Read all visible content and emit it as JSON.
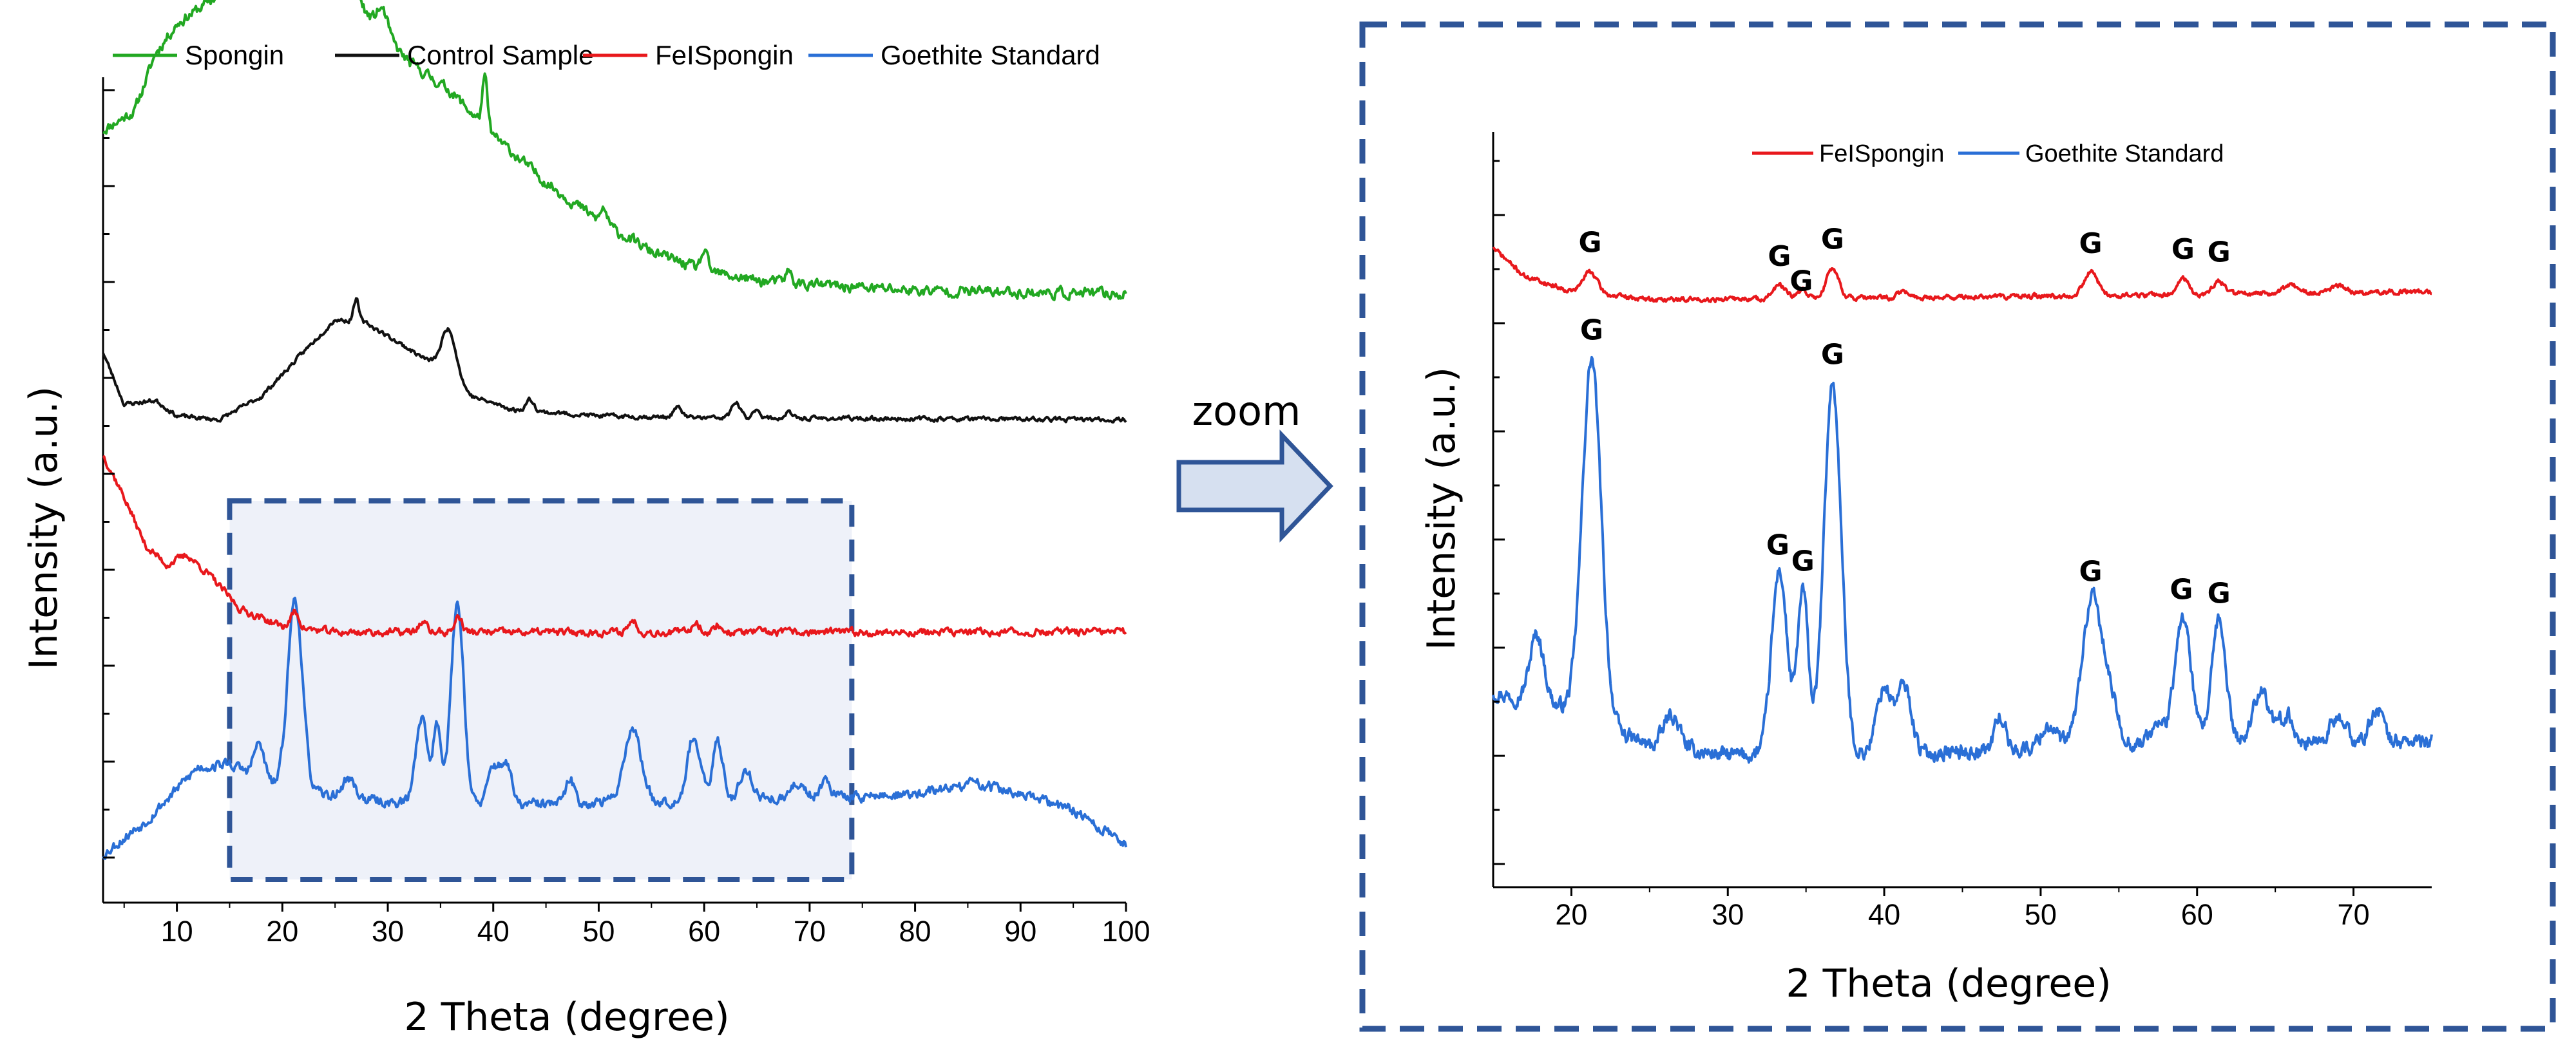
{
  "colors": {
    "spongin": "#22a822",
    "control": "#111111",
    "fespongin": "#e8181c",
    "goethite": "#2a6fd6",
    "frame": "#2f5597",
    "arrow_fill": "#d6e0f0",
    "highlight_fill": "#eef1f9"
  },
  "annotation": {
    "zoom_label": "zoom"
  },
  "chart_data": [
    {
      "type": "line",
      "panel": "full-range",
      "title": "",
      "xlabel": "2 Theta (degree)",
      "ylabel": "Intensity (a.u.)",
      "xlim": [
        3,
        100
      ],
      "x_ticks": [
        10,
        20,
        30,
        40,
        50,
        60,
        70,
        80,
        90,
        100
      ],
      "y_ticks_labeled": false,
      "legend_position": "top",
      "highlight_region": [
        15,
        74
      ],
      "series": [
        {
          "name": "Spongin",
          "color_key": "spongin",
          "offset": 2.95,
          "baseline": [
            [
              3,
              0.85
            ],
            [
              6,
              0.95
            ],
            [
              8,
              1.25
            ],
            [
              10,
              1.4
            ],
            [
              14,
              1.55
            ],
            [
              17,
              1.85
            ],
            [
              19,
              2.4
            ],
            [
              21,
              2.55
            ],
            [
              23,
              2.25
            ],
            [
              25,
              1.75
            ],
            [
              28,
              1.45
            ],
            [
              32,
              1.2
            ],
            [
              36,
              1.05
            ],
            [
              40,
              0.82
            ],
            [
              45,
              0.58
            ],
            [
              50,
              0.38
            ],
            [
              55,
              0.22
            ],
            [
              60,
              0.12
            ],
            [
              65,
              0.07
            ],
            [
              70,
              0.05
            ],
            [
              80,
              0.02
            ],
            [
              100,
              0.0
            ]
          ],
          "peaks": [
            [
              26.7,
              0.3,
              0.3
            ],
            [
              39.2,
              0.25,
              0.25
            ],
            [
              29.5,
              0.12,
              0.5
            ],
            [
              50.5,
              0.08,
              0.3
            ],
            [
              60,
              0.1,
              0.3
            ],
            [
              68,
              0.06,
              0.3
            ]
          ],
          "noise": 0.05
        },
        {
          "name": "Control Sample",
          "color_key": "control",
          "offset": 2.3,
          "baseline": [
            [
              3,
              0.35
            ],
            [
              5,
              0.08
            ],
            [
              8,
              0.1
            ],
            [
              10,
              0.02
            ],
            [
              14,
              0.0
            ],
            [
              18,
              0.12
            ],
            [
              22,
              0.35
            ],
            [
              25,
              0.52
            ],
            [
              28,
              0.5
            ],
            [
              31,
              0.4
            ],
            [
              34,
              0.3
            ],
            [
              38,
              0.12
            ],
            [
              42,
              0.05
            ],
            [
              50,
              0.02
            ],
            [
              60,
              0.01
            ],
            [
              100,
              0.0
            ]
          ],
          "peaks": [
            [
              27.0,
              0.12,
              0.25
            ],
            [
              35.8,
              0.25,
              0.7
            ],
            [
              43.5,
              0.06,
              0.4
            ],
            [
              57.5,
              0.05,
              0.4
            ],
            [
              63,
              0.08,
              0.4
            ],
            [
              65,
              0.05,
              0.3
            ],
            [
              68,
              0.03,
              0.3
            ]
          ],
          "noise": 0.02
        },
        {
          "name": "FeISpongin",
          "color_key": "fespongin",
          "offset": 1.2,
          "baseline": [
            [
              3,
              0.92
            ],
            [
              5,
              0.7
            ],
            [
              7,
              0.45
            ],
            [
              9,
              0.35
            ],
            [
              11,
              0.4
            ],
            [
              13,
              0.3
            ],
            [
              16,
              0.12
            ],
            [
              20,
              0.03
            ],
            [
              25,
              0.0
            ],
            [
              40,
              0.0
            ],
            [
              60,
              0.0
            ],
            [
              100,
              0.0
            ]
          ],
          "peaks": [
            [
              21.2,
              0.08,
              0.4
            ],
            [
              33.3,
              0.05,
              0.4
            ],
            [
              36.7,
              0.08,
              0.35
            ],
            [
              53.2,
              0.06,
              0.4
            ],
            [
              59.2,
              0.05,
              0.4
            ],
            [
              61.3,
              0.04,
              0.3
            ]
          ],
          "noise": 0.035
        },
        {
          "name": "Goethite Standard",
          "color_key": "goethite",
          "offset": 0.0,
          "baseline": [
            [
              3,
              0.05
            ],
            [
              7,
              0.22
            ],
            [
              12,
              0.5
            ],
            [
              15,
              0.52
            ],
            [
              20,
              0.38
            ],
            [
              30,
              0.32
            ],
            [
              40,
              0.3
            ],
            [
              50,
              0.32
            ],
            [
              60,
              0.33
            ],
            [
              70,
              0.34
            ],
            [
              80,
              0.36
            ],
            [
              86,
              0.42
            ],
            [
              95,
              0.28
            ],
            [
              100,
              0.1
            ]
          ],
          "peaks": [
            [
              17.8,
              0.18,
              0.5
            ],
            [
              21.2,
              1.0,
              0.7
            ],
            [
              26.3,
              0.1,
              0.6
            ],
            [
              33.2,
              0.45,
              0.55
            ],
            [
              34.7,
              0.4,
              0.4
            ],
            [
              36.6,
              1.05,
              0.6
            ],
            [
              40.0,
              0.2,
              0.5
            ],
            [
              41.2,
              0.22,
              0.5
            ],
            [
              47.3,
              0.12,
              0.4
            ],
            [
              53.2,
              0.38,
              0.8
            ],
            [
              59.0,
              0.33,
              0.6
            ],
            [
              61.3,
              0.3,
              0.5
            ],
            [
              64.0,
              0.15,
              0.6
            ],
            [
              69,
              0.08,
              0.6
            ],
            [
              71.5,
              0.1,
              0.5
            ]
          ],
          "noise": 0.05
        }
      ]
    },
    {
      "type": "line",
      "panel": "zoom",
      "title": "",
      "xlabel": "2 Theta (degree)",
      "ylabel": "Intensity (a.u.)",
      "xlim": [
        15,
        75
      ],
      "x_ticks": [
        20,
        30,
        40,
        50,
        60,
        70
      ],
      "y_ticks_labeled": false,
      "legend_position": "top",
      "series": [
        {
          "name": "FeISpongin",
          "color_key": "fespongin",
          "offset": 0.0,
          "baseline": [
            [
              15,
              0.32
            ],
            [
              17,
              0.15
            ],
            [
              20,
              0.06
            ],
            [
              25,
              0.01
            ],
            [
              40,
              0.02
            ],
            [
              60,
              0.04
            ],
            [
              75,
              0.06
            ]
          ],
          "peaks": [
            [
              21.2,
              0.13,
              0.45
            ],
            [
              33.3,
              0.08,
              0.4
            ],
            [
              34.8,
              0.05,
              0.3
            ],
            [
              36.7,
              0.18,
              0.4
            ],
            [
              41.2,
              0.04,
              0.3
            ],
            [
              53.2,
              0.14,
              0.45
            ],
            [
              59.1,
              0.1,
              0.35
            ],
            [
              61.4,
              0.08,
              0.35
            ],
            [
              66,
              0.05,
              0.4
            ],
            [
              69,
              0.04,
              0.4
            ]
          ],
          "noise": 0.025
        },
        {
          "name": "Goethite Standard",
          "color_key": "goethite",
          "offset": 0.0,
          "baseline": [
            [
              15,
              0.3
            ],
            [
              20,
              0.22
            ],
            [
              25,
              0.06
            ],
            [
              30,
              0.02
            ],
            [
              40,
              0.02
            ],
            [
              50,
              0.05
            ],
            [
              60,
              0.08
            ],
            [
              75,
              0.08
            ]
          ],
          "peaks": [
            [
              17.8,
              0.3,
              0.45
            ],
            [
              21.3,
              1.6,
              0.6
            ],
            [
              26.4,
              0.15,
              0.5
            ],
            [
              33.3,
              0.82,
              0.5
            ],
            [
              34.8,
              0.72,
              0.35
            ],
            [
              36.7,
              1.65,
              0.55
            ],
            [
              40.0,
              0.3,
              0.5
            ],
            [
              41.3,
              0.3,
              0.45
            ],
            [
              47.4,
              0.15,
              0.35
            ],
            [
              50.5,
              0.1,
              0.5
            ],
            [
              53.3,
              0.65,
              0.65
            ],
            [
              54.5,
              0.15,
              0.5
            ],
            [
              57.5,
              0.08,
              0.5
            ],
            [
              59.1,
              0.56,
              0.5
            ],
            [
              61.4,
              0.53,
              0.45
            ],
            [
              64.1,
              0.24,
              0.5
            ],
            [
              65.7,
              0.12,
              0.4
            ],
            [
              69,
              0.1,
              0.5
            ],
            [
              71.5,
              0.15,
              0.4
            ]
          ],
          "noise": 0.06
        }
      ],
      "peak_annotations": [
        {
          "series": "FeISpongin",
          "labels": [
            {
              "x": 21.2,
              "text": "G"
            },
            {
              "x": 33.3,
              "text": "G"
            },
            {
              "x": 34.7,
              "text": "G"
            },
            {
              "x": 36.7,
              "text": "G"
            },
            {
              "x": 53.2,
              "text": "G"
            },
            {
              "x": 59.1,
              "text": "G"
            },
            {
              "x": 61.4,
              "text": "G"
            }
          ]
        },
        {
          "series": "Goethite Standard",
          "labels": [
            {
              "x": 21.3,
              "text": "G"
            },
            {
              "x": 33.2,
              "text": "G"
            },
            {
              "x": 34.8,
              "text": "G"
            },
            {
              "x": 36.7,
              "text": "G"
            },
            {
              "x": 53.2,
              "text": "G"
            },
            {
              "x": 59.0,
              "text": "G"
            },
            {
              "x": 61.4,
              "text": "G"
            }
          ]
        }
      ]
    }
  ]
}
